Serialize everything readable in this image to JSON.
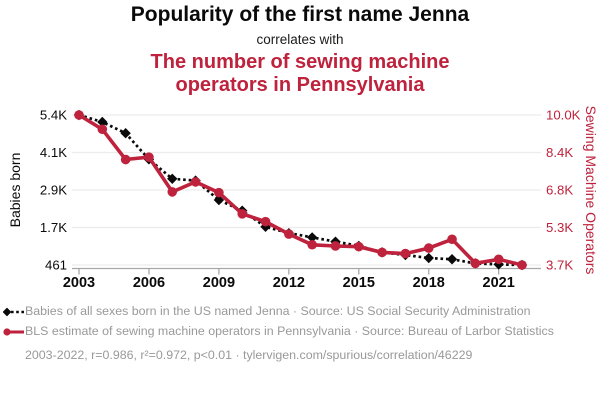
{
  "header": {
    "title": "Popularity of the first name Jenna",
    "connector": "correlates with",
    "subtitle": "The number of sewing machine operators in Pennsylvania"
  },
  "colors": {
    "accent_red": "#be223c",
    "series_black": "#0a0a0a",
    "legend_gray": "#999999",
    "grid": "#ececec",
    "axis": "#a8a8a8"
  },
  "legend": [
    {
      "label": "Babies of all sexes born in the US named Jenna · Source: US Social Security Administration",
      "marker": "diamond-dashed"
    },
    {
      "label": "BLS estimate of sewing machine operators in Pennsylvania · Source: Bureau of Larbor Statistics",
      "marker": "circle-solid"
    }
  ],
  "footer": "2003-2022, r=0.986, r²=0.972, p<0.01 · tylervigen.com/spurious/correlation/46229",
  "chart_data": {
    "type": "line",
    "title": "Popularity of the first name Jenna correlates with The number of sewing machine operators in Pennsylvania",
    "x": [
      2003,
      2004,
      2005,
      2006,
      2007,
      2008,
      2009,
      2010,
      2011,
      2012,
      2013,
      2014,
      2015,
      2016,
      2017,
      2018,
      2019,
      2020,
      2021,
      2022
    ],
    "x_ticks": [
      2003,
      2006,
      2009,
      2012,
      2015,
      2018,
      2021
    ],
    "grid": true,
    "legend_position": "bottom",
    "left_axis": {
      "label": "Babies born",
      "tick_labels": [
        "5.4K",
        "4.1K",
        "2.9K",
        "1.7K",
        "461"
      ],
      "range": [
        461,
        5400
      ]
    },
    "right_axis": {
      "label": "Sewing Machine Operators",
      "tick_labels": [
        "10.0K",
        "8.4K",
        "6.8K",
        "5.3K",
        "3.7K"
      ],
      "range": [
        3700,
        10000
      ]
    },
    "series": [
      {
        "key": "jenna-babies",
        "name": "Babies of all sexes born in the US named Jenna",
        "source": "US Social Security Administration",
        "axis": "left",
        "color": "#0a0a0a",
        "line_style": "dashed",
        "marker": "diamond",
        "values": [
          5400,
          5170,
          4800,
          3940,
          3300,
          3240,
          2600,
          2250,
          1720,
          1510,
          1370,
          1230,
          1090,
          880,
          790,
          690,
          650,
          515,
          480,
          461
        ]
      },
      {
        "key": "sewing-machine-operators-pa",
        "name": "BLS estimate of sewing machine operators in Pennsylvania",
        "source": "Bureau of Larbor Statistics",
        "axis": "right",
        "color": "#be223c",
        "line_style": "solid",
        "marker": "circle",
        "values": [
          10000,
          9400,
          8130,
          8230,
          6770,
          7190,
          6740,
          5850,
          5520,
          5000,
          4550,
          4500,
          4470,
          4230,
          4180,
          4410,
          4780,
          3770,
          3940,
          3700
        ]
      }
    ],
    "stats": {
      "years": "2003-2022",
      "r": "0.986",
      "r2": "0.972",
      "p": "<0.01"
    }
  }
}
